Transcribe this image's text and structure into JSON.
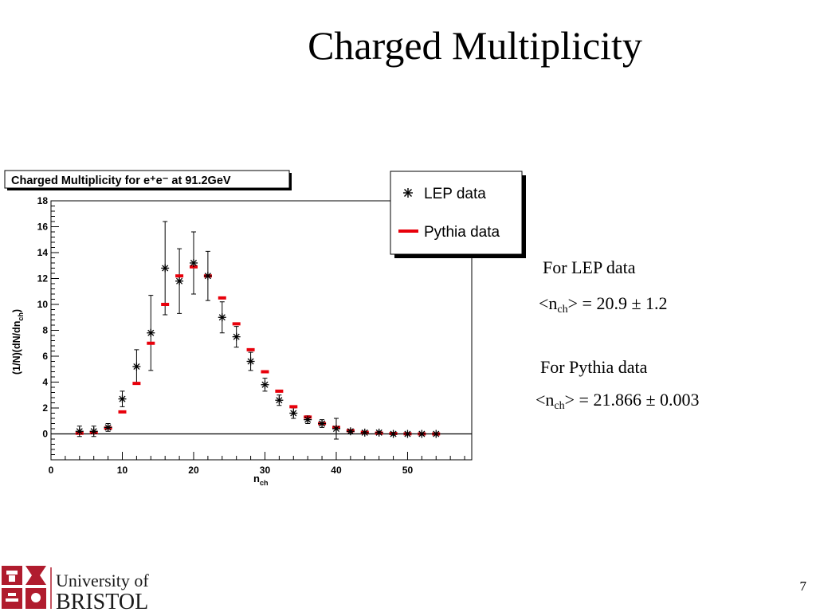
{
  "slide": {
    "title": "Charged Multiplicity",
    "page_number": "7",
    "stats": {
      "lep_label": "For LEP data",
      "lep_prefix": "<n",
      "lep_sub": "ch",
      "lep_value": "> = 20.9 ± 1.2",
      "pythia_label": "For Pythia data",
      "pythia_prefix": "<n",
      "pythia_sub": "ch",
      "pythia_value": "> = 21.866 ± 0.003"
    },
    "logo": {
      "line1": "University of",
      "line2": "BRISTOL"
    },
    "colors": {
      "pythia": "#e8000b",
      "lep": "#000000",
      "logo": "#b01c2e"
    }
  },
  "chart_data": {
    "type": "scatter",
    "title": "Charged Multiplicity for e⁺e⁻ at 91.2GeV",
    "xlabel_main": "n",
    "xlabel_sub": "ch",
    "ylabel_main": "(1/N)(dN/dn",
    "ylabel_sub": "ch",
    "ylabel_end": ")",
    "xlim": [
      0,
      59
    ],
    "ylim": [
      -2,
      18
    ],
    "x_ticks": [
      0,
      10,
      20,
      30,
      40,
      50
    ],
    "y_ticks": [
      0,
      2,
      4,
      6,
      8,
      10,
      12,
      14,
      16,
      18
    ],
    "legend_position": "top-right",
    "series": [
      {
        "name": "LEP data",
        "marker": "asterisk",
        "points": [
          {
            "x": 4,
            "y": 0.2,
            "err": 0.4
          },
          {
            "x": 6,
            "y": 0.2,
            "err": 0.4
          },
          {
            "x": 8,
            "y": 0.5,
            "err": 0.3
          },
          {
            "x": 10,
            "y": 2.7,
            "err": 0.6
          },
          {
            "x": 12,
            "y": 5.2,
            "err": 1.3
          },
          {
            "x": 14,
            "y": 7.8,
            "err": 2.9
          },
          {
            "x": 16,
            "y": 12.8,
            "err": 3.6
          },
          {
            "x": 18,
            "y": 11.8,
            "err": 2.5
          },
          {
            "x": 20,
            "y": 13.2,
            "err": 2.4
          },
          {
            "x": 22,
            "y": 12.2,
            "err": 1.9
          },
          {
            "x": 24,
            "y": 9.0,
            "err": 1.2
          },
          {
            "x": 26,
            "y": 7.5,
            "err": 0.8
          },
          {
            "x": 28,
            "y": 5.6,
            "err": 0.7
          },
          {
            "x": 30,
            "y": 3.8,
            "err": 0.5
          },
          {
            "x": 32,
            "y": 2.6,
            "err": 0.4
          },
          {
            "x": 34,
            "y": 1.6,
            "err": 0.4
          },
          {
            "x": 36,
            "y": 1.1,
            "err": 0.3
          },
          {
            "x": 38,
            "y": 0.8,
            "err": 0.3
          },
          {
            "x": 40,
            "y": 0.4,
            "err": 0.8
          },
          {
            "x": 42,
            "y": 0.2,
            "err": 0.1
          },
          {
            "x": 44,
            "y": 0.1,
            "err": 0.1
          },
          {
            "x": 46,
            "y": 0.1,
            "err": 0.1
          },
          {
            "x": 48,
            "y": 0.0,
            "err": 0.1
          },
          {
            "x": 50,
            "y": 0.0,
            "err": 0.0
          },
          {
            "x": 52,
            "y": 0.0,
            "err": 0.0
          },
          {
            "x": 54,
            "y": 0.0,
            "err": 0.0
          }
        ]
      },
      {
        "name": "Pythia data",
        "marker": "dash",
        "points": [
          {
            "x": 4,
            "y": 0.05
          },
          {
            "x": 6,
            "y": 0.1
          },
          {
            "x": 8,
            "y": 0.45
          },
          {
            "x": 10,
            "y": 1.7
          },
          {
            "x": 12,
            "y": 3.9
          },
          {
            "x": 14,
            "y": 7.0
          },
          {
            "x": 16,
            "y": 10.0
          },
          {
            "x": 18,
            "y": 12.2
          },
          {
            "x": 20,
            "y": 12.9
          },
          {
            "x": 22,
            "y": 12.2
          },
          {
            "x": 24,
            "y": 10.5
          },
          {
            "x": 26,
            "y": 8.5
          },
          {
            "x": 28,
            "y": 6.5
          },
          {
            "x": 30,
            "y": 4.8
          },
          {
            "x": 32,
            "y": 3.3
          },
          {
            "x": 34,
            "y": 2.1
          },
          {
            "x": 36,
            "y": 1.3
          },
          {
            "x": 38,
            "y": 0.8
          },
          {
            "x": 40,
            "y": 0.5
          },
          {
            "x": 42,
            "y": 0.25
          },
          {
            "x": 44,
            "y": 0.12
          },
          {
            "x": 46,
            "y": 0.06
          },
          {
            "x": 48,
            "y": 0.03
          },
          {
            "x": 50,
            "y": 0.01
          },
          {
            "x": 52,
            "y": 0.0
          },
          {
            "x": 54,
            "y": 0.0
          }
        ]
      }
    ]
  }
}
